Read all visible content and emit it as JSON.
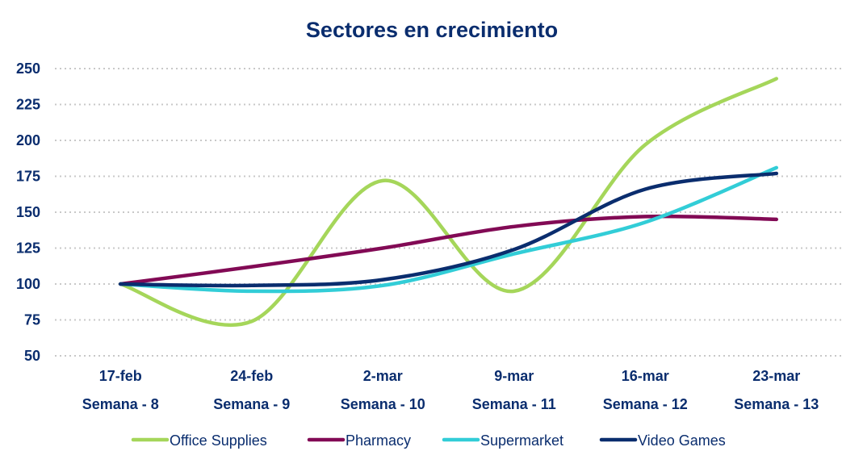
{
  "chart_data": {
    "type": "line",
    "title": "Sectores en crecimiento",
    "xlabel": "",
    "ylabel": "",
    "categories": [
      "17-feb",
      "24-feb",
      "2-mar",
      "9-mar",
      "16-mar",
      "23-mar"
    ],
    "subcategories": [
      "Semana - 8",
      "Semana - 9",
      "Semana - 10",
      "Semana - 11",
      "Semana - 12",
      "Semana - 13"
    ],
    "ylim": [
      50,
      250
    ],
    "yticks": [
      50,
      75,
      100,
      125,
      150,
      175,
      200,
      225,
      250
    ],
    "grid": true,
    "legend_position": "bottom",
    "series": [
      {
        "name": "Office Supplies",
        "color": "#a5d65a",
        "values": [
          100,
          74,
          172,
          95,
          197,
          243
        ]
      },
      {
        "name": "Pharmacy",
        "color": "#820a55",
        "values": [
          100,
          112,
          125,
          140,
          147,
          145
        ]
      },
      {
        "name": "Supermarket",
        "color": "#32cdd7",
        "values": [
          100,
          95,
          99,
          121,
          143,
          181
        ]
      },
      {
        "name": "Video Games",
        "color": "#0a2d6e",
        "values": [
          100,
          99,
          103,
          124,
          166,
          177
        ]
      }
    ]
  }
}
